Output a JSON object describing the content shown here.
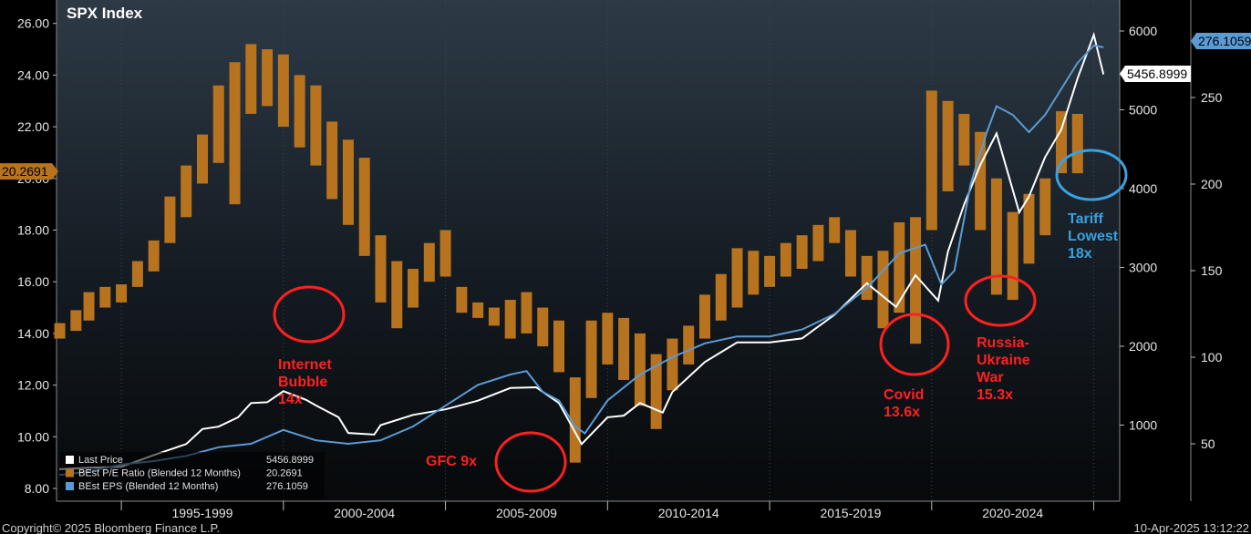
{
  "chart_data": {
    "type": "bar",
    "title": "SPX Index",
    "x_labels": [
      "1995-1999",
      "2000-2004",
      "2005-2009",
      "2010-2014",
      "2015-2019",
      "2020-2024"
    ],
    "y_left": {
      "ticks": [
        "26.00",
        "24.00",
        "22.00",
        "20.00",
        "18.00",
        "16.00",
        "14.00",
        "12.00",
        "10.00",
        "8.00"
      ],
      "range": [
        8,
        26
      ]
    },
    "y_price": {
      "ticks": [
        "6000",
        "5000",
        "4000",
        "3000",
        "2000",
        "1000"
      ],
      "range": [
        0,
        6000
      ]
    },
    "y_eps": {
      "ticks": [
        "250",
        "200",
        "150",
        "100",
        "50"
      ],
      "range": [
        0,
        280
      ]
    },
    "last_values": {
      "price": "5456.8999",
      "pe": "20.2691",
      "eps": "276.1059"
    },
    "series": [
      {
        "name": "Last Price",
        "color": "#ffffff",
        "value_label": "5456.8999",
        "t": [
          1993.1,
          1994,
          1995,
          1996,
          1997,
          1997.5,
          1998,
          1998.6,
          1999,
          1999.5,
          2000,
          2000.7,
          2001,
          2001.7,
          2002,
          2002.8,
          2003,
          2004,
          2005,
          2006,
          2007,
          2007.8,
          2008.5,
          2009.2,
          2010,
          2010.5,
          2011,
          2011.7,
          2012,
          2013,
          2014,
          2015,
          2016,
          2017,
          2018,
          2018.9,
          2019.5,
          2020.2,
          2020.5,
          2021,
          2021.5,
          2022,
          2022.7,
          2023,
          2023.5,
          2024,
          2024.5,
          2025,
          2025.3
        ],
        "values": [
          440,
          460,
          470,
          620,
          760,
          950,
          980,
          1100,
          1280,
          1290,
          1430,
          1320,
          1250,
          1100,
          900,
          880,
          1000,
          1130,
          1200,
          1310,
          1470,
          1480,
          1280,
          760,
          1100,
          1120,
          1280,
          1160,
          1420,
          1800,
          2050,
          2050,
          2100,
          2400,
          2800,
          2500,
          2900,
          2580,
          3200,
          3800,
          4300,
          4700,
          3700,
          3900,
          4400,
          4750,
          5400,
          5950,
          5450
        ]
      },
      {
        "name": "BEst P/E Ratio (Blended 12 Months)",
        "color": "#b8731f",
        "value_label": "20.2691",
        "bars": [
          [
            1993.1,
            13.8,
            14.4
          ],
          [
            1993.6,
            14.1,
            14.9
          ],
          [
            1994,
            14.5,
            15.6
          ],
          [
            1994.5,
            15,
            15.8
          ],
          [
            1995,
            15.2,
            15.9
          ],
          [
            1995.5,
            15.8,
            16.8
          ],
          [
            1996,
            16.4,
            17.6
          ],
          [
            1996.5,
            17.5,
            19.3
          ],
          [
            1997,
            18.5,
            20.5
          ],
          [
            1997.5,
            19.8,
            21.7
          ],
          [
            1998,
            20.6,
            23.6
          ],
          [
            1998.5,
            19,
            24.5
          ],
          [
            1999,
            22.5,
            25.2
          ],
          [
            1999.5,
            22.8,
            25
          ],
          [
            2000,
            22,
            24.8
          ],
          [
            2000.5,
            21.2,
            24
          ],
          [
            2001,
            20.5,
            23.6
          ],
          [
            2001.5,
            19.2,
            22.2
          ],
          [
            2002,
            18.2,
            21.5
          ],
          [
            2002.5,
            17,
            20.8
          ],
          [
            2003,
            15.2,
            17.8
          ],
          [
            2003.5,
            14.2,
            16.8
          ],
          [
            2004,
            15,
            16.5
          ],
          [
            2004.5,
            16,
            17.5
          ],
          [
            2005,
            16.2,
            18
          ],
          [
            2005.5,
            14.8,
            15.8
          ],
          [
            2006,
            14.6,
            15.2
          ],
          [
            2006.5,
            14.3,
            15
          ],
          [
            2007,
            13.8,
            15.3
          ],
          [
            2007.5,
            14,
            15.6
          ],
          [
            2008,
            13.5,
            15
          ],
          [
            2008.5,
            12.5,
            14.5
          ],
          [
            2009,
            9,
            12.3
          ],
          [
            2009.5,
            11.5,
            14.5
          ],
          [
            2010,
            12.8,
            14.8
          ],
          [
            2010.5,
            12.2,
            14.6
          ],
          [
            2011,
            11.2,
            14
          ],
          [
            2011.5,
            10.3,
            13.2
          ],
          [
            2012,
            11.8,
            13.8
          ],
          [
            2012.5,
            12.8,
            14.3
          ],
          [
            2013,
            13.8,
            15.5
          ],
          [
            2013.5,
            14.5,
            16.3
          ],
          [
            2014,
            15,
            17.3
          ],
          [
            2014.5,
            15.5,
            17.2
          ],
          [
            2015,
            15.8,
            17
          ],
          [
            2015.5,
            16.2,
            17.5
          ],
          [
            2016,
            16.5,
            17.8
          ],
          [
            2016.5,
            16.8,
            18.2
          ],
          [
            2017,
            17.5,
            18.5
          ],
          [
            2017.5,
            16.2,
            18
          ],
          [
            2018,
            15.3,
            17
          ],
          [
            2018.5,
            14.2,
            17.2
          ],
          [
            2019,
            14.8,
            18.3
          ],
          [
            2019.5,
            13.6,
            18.5
          ],
          [
            2020,
            18,
            23.4
          ],
          [
            2020.5,
            19.5,
            23
          ],
          [
            2021,
            20.5,
            22.5
          ],
          [
            2021.5,
            18,
            21.8
          ],
          [
            2022,
            15.5,
            20
          ],
          [
            2022.5,
            15.3,
            18.7
          ],
          [
            2023,
            16.7,
            19.4
          ],
          [
            2023.5,
            17.8,
            20
          ],
          [
            2024,
            20.2,
            22.6
          ],
          [
            2024.5,
            20.2,
            22.5
          ]
        ]
      },
      {
        "name": "BEst EPS (Blended 12 Months)",
        "color": "#5b9bd5",
        "value_label": "276.1059",
        "t": [
          1993.1,
          1994,
          1995,
          1996,
          1997,
          1998,
          1999,
          2000,
          2001,
          2002,
          2003,
          2004,
          2005,
          2006,
          2007,
          2007.5,
          2008,
          2008.5,
          2009,
          2009.3,
          2010,
          2011,
          2012,
          2013,
          2014,
          2015,
          2016,
          2017,
          2018,
          2019,
          2019.8,
          2020.3,
          2020.7,
          2021.2,
          2021.7,
          2022,
          2022.5,
          2023,
          2023.5,
          2024,
          2024.5,
          2025,
          2025.3
        ],
        "values": [
          32,
          34,
          38,
          40,
          43,
          48,
          50,
          58,
          52,
          50,
          52,
          60,
          72,
          84,
          90,
          92,
          80,
          75,
          60,
          56,
          75,
          90,
          100,
          108,
          112,
          112,
          116,
          125,
          140,
          160,
          165,
          142,
          150,
          200,
          230,
          245,
          240,
          230,
          240,
          255,
          270,
          280,
          279
        ]
      }
    ],
    "annotations": [
      {
        "text": [
          "Internet",
          "Bubble",
          "14x"
        ],
        "color": "#ff2020"
      },
      {
        "text": [
          "GFC 9x"
        ],
        "color": "#ff2020"
      },
      {
        "text": [
          "Covid",
          "13.6x"
        ],
        "color": "#ff2020"
      },
      {
        "text": [
          "Russia-",
          "Ukraine",
          "War",
          "15.3x"
        ],
        "color": "#ff2020"
      },
      {
        "text": [
          "Tariff",
          "Lowest",
          "18x"
        ],
        "color": "#3aa0e0"
      }
    ],
    "legend": [
      {
        "label": "Last Price",
        "value": "5456.8999",
        "color": "#ffffff"
      },
      {
        "label": "BEst P/E Ratio (Blended 12 Months)",
        "value": "20.2691",
        "color": "#b8731f"
      },
      {
        "label": "BEst EPS (Blended 12 Months)",
        "value": "276.1059",
        "color": "#5b9bd5"
      }
    ]
  },
  "footer": {
    "copyright": "Copyright© 2025 Bloomberg Finance L.P.",
    "timestamp": "10-Apr-2025 13:12:22"
  }
}
